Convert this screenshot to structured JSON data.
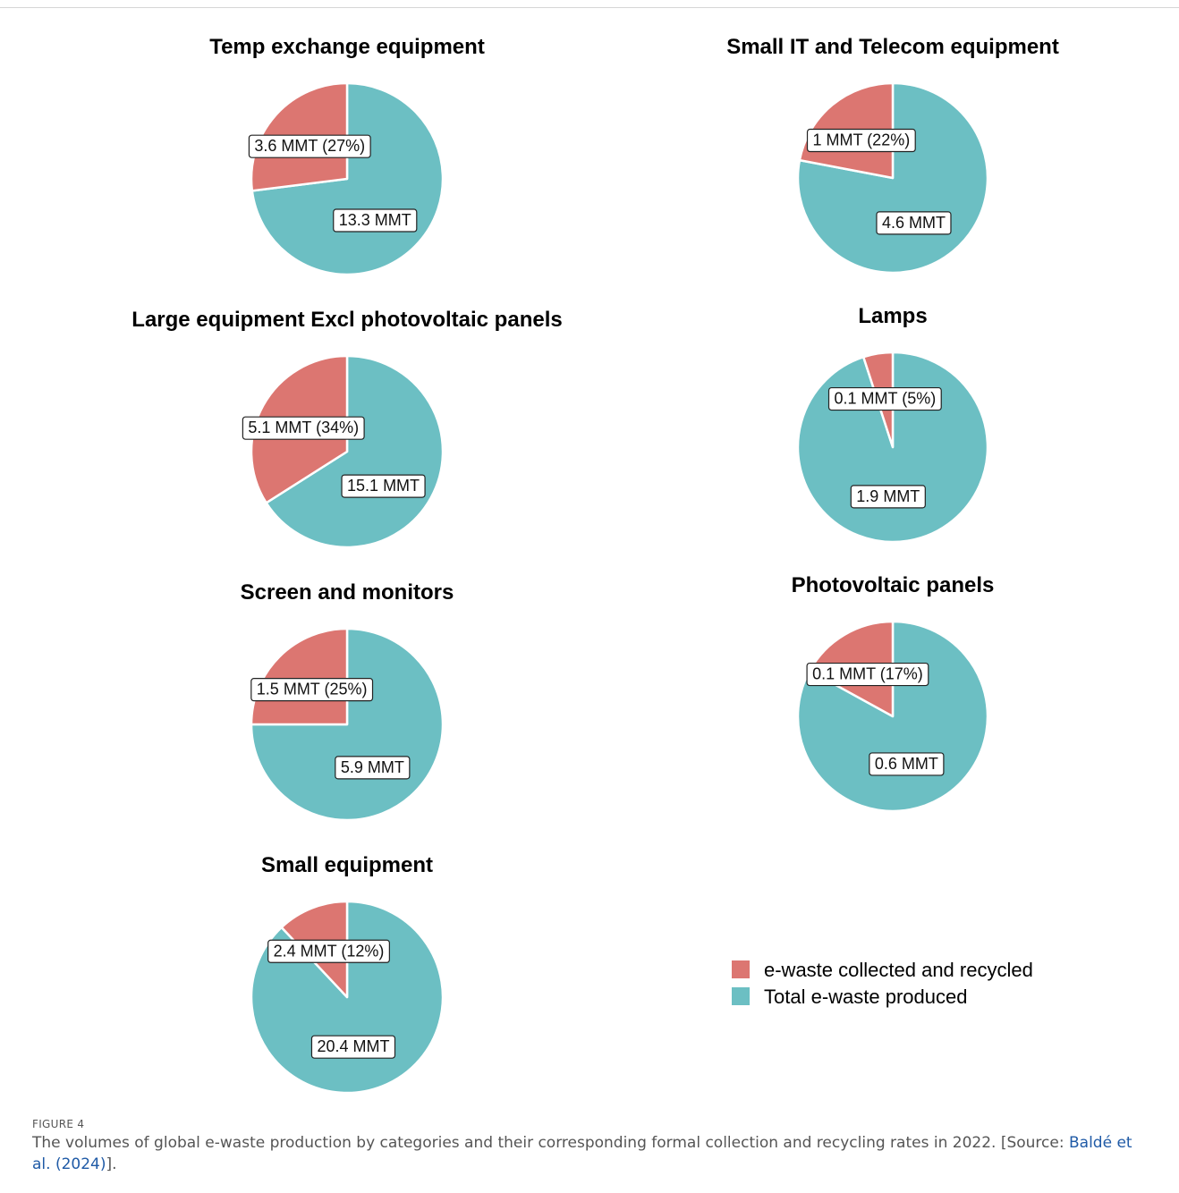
{
  "chart_data": [
    {
      "type": "pie",
      "title": "Temp exchange equipment",
      "series": [
        {
          "name": "e-waste collected and recycled",
          "value": 3.6,
          "percent": 27,
          "label": "3.6 MMT (27%)"
        },
        {
          "name": "Total e-waste produced",
          "value": 13.3,
          "label": "13.3 MMT"
        }
      ]
    },
    {
      "type": "pie",
      "title": "Small IT and Telecom equipment",
      "series": [
        {
          "name": "e-waste collected and recycled",
          "value": 1,
          "percent": 22,
          "label": "1 MMT (22%)"
        },
        {
          "name": "Total e-waste produced",
          "value": 4.6,
          "label": "4.6 MMT"
        }
      ]
    },
    {
      "type": "pie",
      "title": "Large equipment Excl photovoltaic panels",
      "series": [
        {
          "name": "e-waste collected and recycled",
          "value": 5.1,
          "percent": 34,
          "label": "5.1 MMT (34%)"
        },
        {
          "name": "Total e-waste produced",
          "value": 15.1,
          "label": "15.1 MMT"
        }
      ]
    },
    {
      "type": "pie",
      "title": "Lamps",
      "series": [
        {
          "name": "e-waste collected and recycled",
          "value": 0.1,
          "percent": 5,
          "label": "0.1 MMT (5%)"
        },
        {
          "name": "Total e-waste produced",
          "value": 1.9,
          "label": "1.9 MMT"
        }
      ]
    },
    {
      "type": "pie",
      "title": "Screen and monitors",
      "series": [
        {
          "name": "e-waste collected and recycled",
          "value": 1.5,
          "percent": 25,
          "label": "1.5 MMT (25%)"
        },
        {
          "name": "Total e-waste produced",
          "value": 5.9,
          "label": "5.9 MMT"
        }
      ]
    },
    {
      "type": "pie",
      "title": "Photovoltaic panels",
      "series": [
        {
          "name": "e-waste collected and recycled",
          "value": 0.1,
          "percent": 17,
          "label": "0.1 MMT (17%)"
        },
        {
          "name": "Total e-waste produced",
          "value": 0.6,
          "label": "0.6 MMT"
        }
      ]
    },
    {
      "type": "pie",
      "title": "Small equipment",
      "series": [
        {
          "name": "e-waste collected and recycled",
          "value": 2.4,
          "percent": 12,
          "label": "2.4 MMT (12%)"
        },
        {
          "name": "Total e-waste produced",
          "value": 20.4,
          "label": "20.4 MMT"
        }
      ]
    }
  ],
  "legend": {
    "placement": "bottom-right",
    "items": [
      {
        "label": "e-waste collected and recycled",
        "color": "#dc7671"
      },
      {
        "label": "Total e-waste produced",
        "color": "#6cbfc3"
      }
    ]
  },
  "caption": {
    "label": "FIGURE 4",
    "text": "The volumes of global e-waste production by categories and their corresponding formal collection and recycling rates in 2022. [Source: ",
    "source_link": "Baldé et al. (2024)",
    "text_end": "]."
  }
}
